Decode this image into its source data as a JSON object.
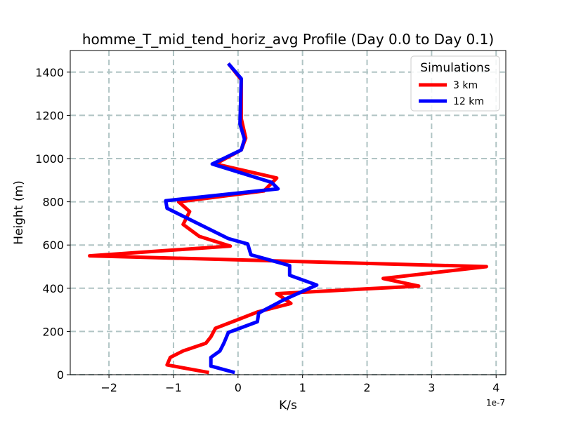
{
  "chart_data": {
    "type": "line",
    "title": "homme_T_mid_tend_horiz_avg Profile (Day 0.0 to Day 0.1)",
    "xlabel": "K/s",
    "ylabel": "Height (m)",
    "x_offset_label": "1e-7",
    "xlim": [
      -2.6,
      4.15
    ],
    "ylim": [
      0,
      1500
    ],
    "x_ticks": [
      -2,
      -1,
      0,
      1,
      2,
      3,
      4
    ],
    "x_tick_labels": [
      "−2",
      "−1",
      "0",
      "1",
      "2",
      "3",
      "4"
    ],
    "y_ticks": [
      0,
      200,
      400,
      600,
      800,
      1000,
      1200,
      1400
    ],
    "y_tick_labels": [
      "0",
      "200",
      "400",
      "600",
      "800",
      "1000",
      "1200",
      "1400"
    ],
    "grid": true,
    "legend": {
      "title": "Simulations",
      "position": "top-right"
    },
    "series": [
      {
        "name": "3 km",
        "color": "#ff0000",
        "points": [
          [
            -0.45,
            10
          ],
          [
            -1.1,
            45
          ],
          [
            -1.05,
            80
          ],
          [
            -0.85,
            110
          ],
          [
            -0.5,
            145
          ],
          [
            -0.42,
            175
          ],
          [
            -0.35,
            215
          ],
          [
            0.0,
            255
          ],
          [
            0.3,
            290
          ],
          [
            0.82,
            330
          ],
          [
            0.65,
            365
          ],
          [
            0.6,
            375
          ],
          [
            2.8,
            410
          ],
          [
            2.25,
            445
          ],
          [
            3.85,
            500
          ],
          [
            -2.3,
            550
          ],
          [
            -0.12,
            595
          ],
          [
            -0.6,
            640
          ],
          [
            -0.85,
            695
          ],
          [
            -0.75,
            755
          ],
          [
            -0.92,
            800
          ],
          [
            0.4,
            850
          ],
          [
            0.6,
            910
          ],
          [
            -0.35,
            975
          ],
          [
            0.05,
            1040
          ],
          [
            0.12,
            1095
          ],
          [
            0.05,
            1185
          ],
          [
            0.05,
            1365
          ],
          [
            -0.15,
            1440
          ]
        ]
      },
      {
        "name": "12 km",
        "color": "#0000ff",
        "points": [
          [
            -0.05,
            10
          ],
          [
            -0.42,
            40
          ],
          [
            -0.42,
            80
          ],
          [
            -0.28,
            110
          ],
          [
            -0.22,
            145
          ],
          [
            -0.15,
            195
          ],
          [
            0.3,
            245
          ],
          [
            0.32,
            285
          ],
          [
            0.7,
            345
          ],
          [
            1.22,
            415
          ],
          [
            0.8,
            460
          ],
          [
            0.8,
            505
          ],
          [
            0.2,
            555
          ],
          [
            0.15,
            605
          ],
          [
            -0.15,
            630
          ],
          [
            -1.1,
            770
          ],
          [
            -1.12,
            805
          ],
          [
            0.62,
            860
          ],
          [
            0.52,
            890
          ],
          [
            -0.4,
            975
          ],
          [
            0.05,
            1040
          ],
          [
            0.1,
            1090
          ],
          [
            0.03,
            1160
          ],
          [
            0.05,
            1370
          ],
          [
            -0.15,
            1440
          ]
        ]
      }
    ]
  }
}
